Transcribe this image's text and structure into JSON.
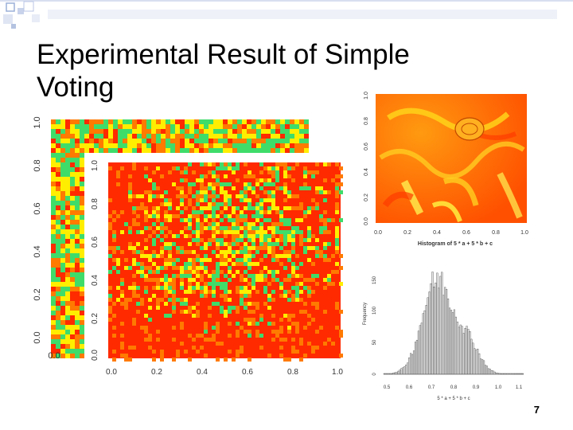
{
  "slide": {
    "title_line1": "Experimental Result of Simple",
    "title_line2": "Voting",
    "page_number": "7"
  },
  "back_map": {
    "y_ticks": [
      "1.0",
      "0.8",
      "0.6",
      "0.4",
      "0.2",
      "0.0"
    ],
    "x_ticks": [
      "0.0"
    ]
  },
  "front_map": {
    "y_ticks": [
      "1.0",
      "0.8",
      "0.6",
      "0.4",
      "0.2",
      "0.0"
    ],
    "x_ticks": [
      "0.0",
      "0.2",
      "0.4",
      "0.6",
      "0.8",
      "1.0"
    ]
  },
  "orange_map": {
    "y_ticks": [
      "1.0",
      "0.8",
      "0.6",
      "0.4",
      "0.2",
      "0.0"
    ],
    "x_ticks": [
      "0.0",
      "0.2",
      "0.4",
      "0.6",
      "0.8",
      "1.0"
    ],
    "caption": "Histogram of 5 * a + 5 * b + c"
  },
  "histogram": {
    "ylabel": "Frequency",
    "xlabel": "5 * a + 5 * b + c",
    "y_ticks": [
      "0",
      "50",
      "100",
      "150"
    ],
    "x_ticks": [
      "0.5",
      "0.6",
      "0.7",
      "0.8",
      "0.9",
      "1.0",
      "1.1"
    ]
  },
  "colors": {
    "heat_red": "#ff2a00",
    "heat_orange": "#ff7a00",
    "heat_yellow": "#ffee00",
    "heat_green": "#3fdc6a",
    "deco_blue": "#9bb0d8"
  }
}
